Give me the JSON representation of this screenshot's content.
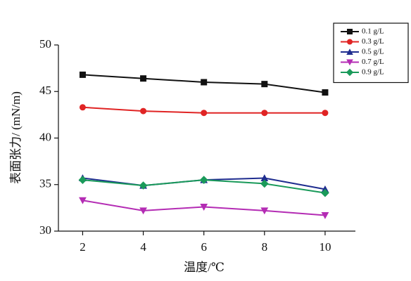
{
  "chart_data": {
    "type": "line",
    "x_label": "温度/℃",
    "y_label": "表面张力/ (mN/m)",
    "x": [
      2,
      4,
      6,
      8,
      10
    ],
    "xlim": [
      1.2,
      11
    ],
    "xticks": [
      2,
      4,
      6,
      8,
      10
    ],
    "ylim": [
      30,
      50
    ],
    "yticks": [
      30,
      35,
      40,
      45,
      50
    ],
    "legend": "upper right",
    "series": [
      {
        "name": "0.1 g/L",
        "color": "#111111",
        "marker": "square",
        "values": [
          46.8,
          46.4,
          46.0,
          45.8,
          44.9
        ]
      },
      {
        "name": "0.3 g/L",
        "color": "#e02424",
        "marker": "circle",
        "values": [
          43.3,
          42.9,
          42.7,
          42.7,
          42.7
        ]
      },
      {
        "name": "0.5 g/L",
        "color": "#1f2d8f",
        "marker": "triangle-up",
        "values": [
          35.7,
          34.9,
          35.5,
          35.7,
          34.5
        ]
      },
      {
        "name": "0.7 g/L",
        "color": "#b42cb4",
        "marker": "triangle-down",
        "values": [
          33.3,
          32.2,
          32.6,
          32.2,
          31.7
        ]
      },
      {
        "name": "0.9 g/L",
        "color": "#1a9a5a",
        "marker": "diamond",
        "values": [
          35.5,
          34.9,
          35.5,
          35.1,
          34.1
        ]
      }
    ]
  }
}
